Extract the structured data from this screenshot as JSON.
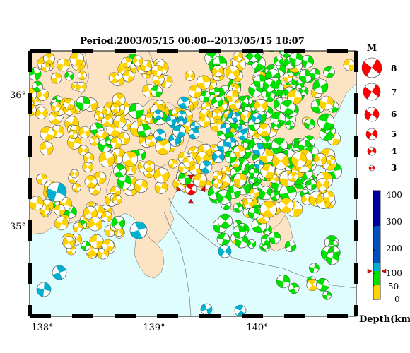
{
  "title": "Period:2003/05/15 00:00--2013/05/15 18:07",
  "axes": {
    "lon_labels": [
      {
        "text": "138°",
        "lon": 138.0
      },
      {
        "text": "139°",
        "lon": 139.0
      },
      {
        "text": "140°",
        "lon": 140.0
      }
    ],
    "lat_labels": [
      {
        "text": "36°",
        "lat": 36.0
      },
      {
        "text": "35°",
        "lat": 35.0
      }
    ]
  },
  "magnitude_legend": {
    "title": "M",
    "items": [
      "8",
      "7",
      "6",
      "5",
      "4",
      "3"
    ]
  },
  "depth_legend": {
    "title": "Depth(km)",
    "ticks": [
      "400",
      "300",
      "200",
      "100",
      "50",
      "0"
    ],
    "colors": {
      "shallow": "#ffd300",
      "mid": "#00e000",
      "deep": "#00b0d0",
      "deeper": "#0050c0",
      "deepest": "#0000a0"
    }
  },
  "colors": {
    "land": "#fbe3c3",
    "sea": "#dffdfd",
    "mainshock": "#ff0000",
    "marker": "#ff0000"
  },
  "mainshock": {
    "lon": 139.33,
    "lat": 35.28
  }
}
